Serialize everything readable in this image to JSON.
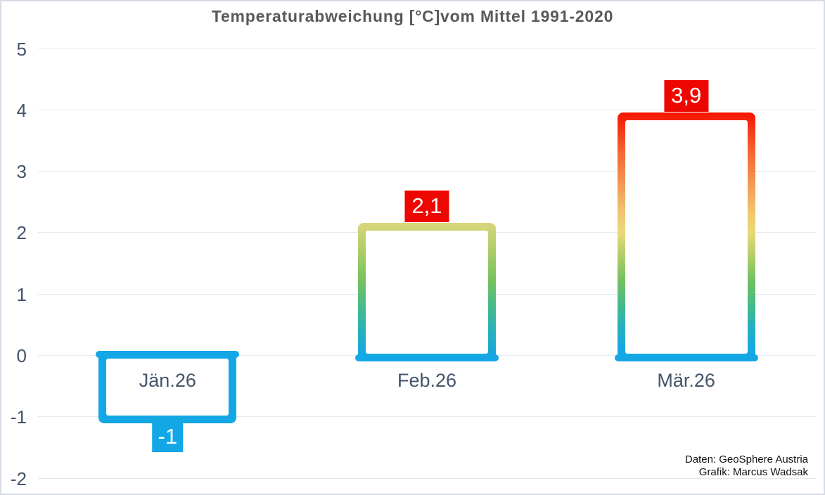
{
  "header": {
    "title": "Temperaturabweichung [°C]vom Mittel 1991-2020"
  },
  "credits": {
    "line1": "Daten: GeoSphere Austria",
    "line2": "Grafik: Marcus Wadsak"
  },
  "colors": {
    "background": "#FFFFFF",
    "frame_border": "#D6DBE4",
    "gridline": "#E3E9F0",
    "title_text": "#595959",
    "axis_text": "#44546A",
    "blue": "#14A7E6",
    "label_red": "#EE0700",
    "label_text": "#FFFFFF"
  },
  "chart_data": {
    "type": "bar",
    "title": "Temperaturabweichung [°C]vom Mittel 1991-2020",
    "xlabel": "",
    "ylabel": "Temperaturabweichung [°C]",
    "categories": [
      "Jän.26",
      "Feb.26",
      "Mär.26"
    ],
    "values": [
      -1,
      2.1,
      3.9
    ],
    "value_labels": [
      "-1",
      "2,1",
      "3,9"
    ],
    "ylim": [
      -2,
      5
    ],
    "yticks": [
      5,
      4,
      3,
      2,
      1,
      0,
      -1,
      -2
    ],
    "grid": true,
    "legend_position": "none",
    "bar_style": "hollow bars with thick gradient outline (temperature color scale: blue at 0 up to red at ~4)",
    "bars": [
      {
        "category": "Jän.26",
        "value": -1,
        "label": "-1",
        "label_bg": "#14A7E6",
        "outline_gradient": [
          [
            "#14A7E6",
            0
          ],
          [
            "#14A7E6",
            100
          ]
        ]
      },
      {
        "category": "Feb.26",
        "value": 2.1,
        "label": "2,1",
        "label_bg": "#EE0700",
        "outline_gradient": [
          [
            "#DBD57B",
            0
          ],
          [
            "#A8CC67",
            22
          ],
          [
            "#74C15F",
            42
          ],
          [
            "#44BA90",
            62
          ],
          [
            "#26B0C0",
            80
          ],
          [
            "#14A7E6",
            97
          ]
        ]
      },
      {
        "category": "Mär.26",
        "value": 3.9,
        "label": "3,9",
        "label_bg": "#EE0700",
        "outline_gradient": [
          [
            "#F51400",
            0
          ],
          [
            "#F4622F",
            15
          ],
          [
            "#F4914F",
            27
          ],
          [
            "#F0C46D",
            40
          ],
          [
            "#EBD878",
            48
          ],
          [
            "#AECD68",
            58
          ],
          [
            "#6FC05F",
            68
          ],
          [
            "#3FB894",
            79
          ],
          [
            "#22AFC4",
            87
          ],
          [
            "#14A7E6",
            96
          ]
        ]
      }
    ]
  }
}
